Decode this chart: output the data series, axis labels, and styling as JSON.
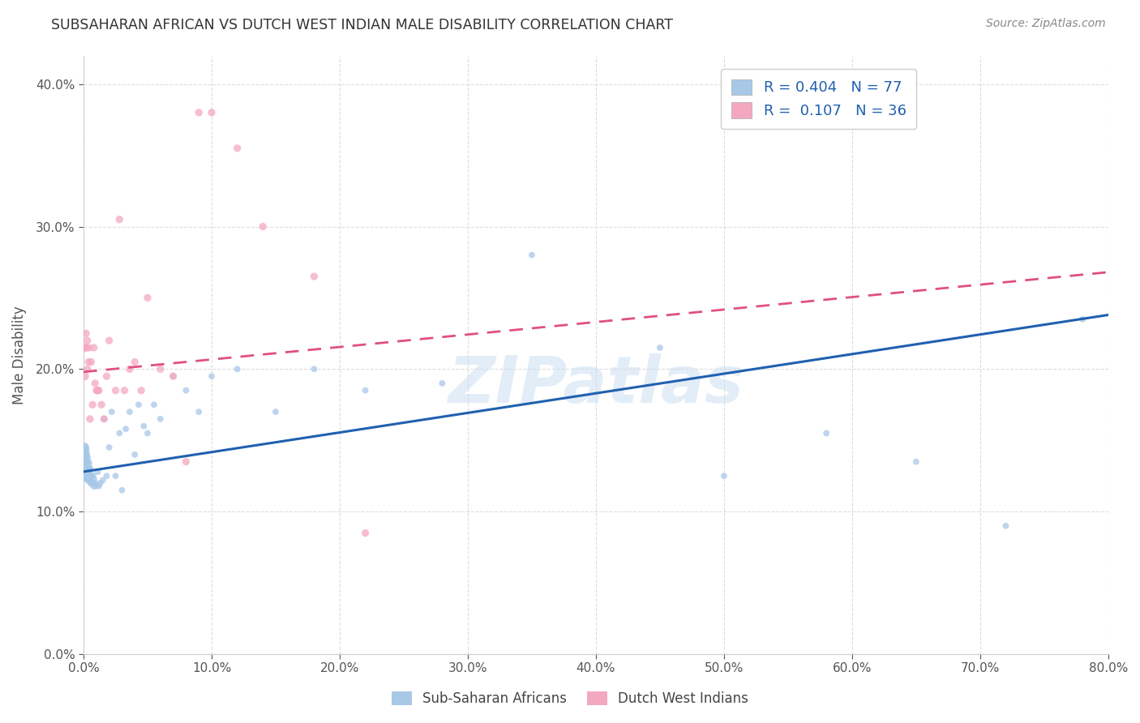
{
  "title": "SUBSAHARAN AFRICAN VS DUTCH WEST INDIAN MALE DISABILITY CORRELATION CHART",
  "source": "Source: ZipAtlas.com",
  "ylabel": "Male Disability",
  "legend_labels": [
    "Sub-Saharan Africans",
    "Dutch West Indians"
  ],
  "series1_label": "R = 0.404   N = 77",
  "series2_label": "R =  0.107   N = 36",
  "series1_color": "#a8c8e8",
  "series2_color": "#f4a8c0",
  "series1_line_color": "#2060b0",
  "series2_line_color": "#e05080",
  "series2_line_style": "--",
  "xmin": 0.0,
  "xmax": 0.8,
  "ymin": 0.0,
  "ymax": 0.42,
  "grid_color": "#dddddd",
  "watermark": "ZIPatlas",
  "background_color": "#ffffff",
  "s1_x": [
    0.0005,
    0.0005,
    0.0005,
    0.0005,
    0.0005,
    0.001,
    0.001,
    0.001,
    0.001,
    0.001,
    0.001,
    0.001,
    0.001,
    0.001,
    0.002,
    0.002,
    0.002,
    0.002,
    0.002,
    0.002,
    0.002,
    0.003,
    0.003,
    0.003,
    0.003,
    0.003,
    0.003,
    0.004,
    0.004,
    0.004,
    0.004,
    0.005,
    0.005,
    0.005,
    0.006,
    0.006,
    0.007,
    0.007,
    0.008,
    0.008,
    0.009,
    0.01,
    0.011,
    0.012,
    0.013,
    0.015,
    0.016,
    0.018,
    0.02,
    0.022,
    0.025,
    0.028,
    0.03,
    0.033,
    0.036,
    0.04,
    0.043,
    0.047,
    0.05,
    0.055,
    0.06,
    0.07,
    0.08,
    0.09,
    0.1,
    0.12,
    0.15,
    0.18,
    0.22,
    0.28,
    0.35,
    0.45,
    0.5,
    0.58,
    0.65,
    0.72,
    0.78
  ],
  "s1_y": [
    0.135,
    0.14,
    0.145,
    0.138,
    0.142,
    0.125,
    0.128,
    0.13,
    0.132,
    0.135,
    0.138,
    0.14,
    0.142,
    0.145,
    0.125,
    0.128,
    0.13,
    0.133,
    0.136,
    0.14,
    0.143,
    0.123,
    0.126,
    0.128,
    0.131,
    0.135,
    0.138,
    0.122,
    0.126,
    0.13,
    0.134,
    0.122,
    0.126,
    0.13,
    0.12,
    0.125,
    0.12,
    0.125,
    0.118,
    0.123,
    0.12,
    0.118,
    0.128,
    0.118,
    0.12,
    0.122,
    0.165,
    0.125,
    0.145,
    0.17,
    0.125,
    0.155,
    0.115,
    0.158,
    0.17,
    0.14,
    0.175,
    0.16,
    0.155,
    0.175,
    0.165,
    0.195,
    0.185,
    0.17,
    0.195,
    0.2,
    0.17,
    0.2,
    0.185,
    0.19,
    0.28,
    0.215,
    0.125,
    0.155,
    0.135,
    0.09,
    0.235
  ],
  "s1_sizes": [
    120,
    100,
    80,
    60,
    50,
    80,
    70,
    60,
    55,
    50,
    48,
    46,
    44,
    42,
    55,
    52,
    48,
    46,
    44,
    42,
    40,
    52,
    48,
    46,
    44,
    42,
    40,
    48,
    46,
    44,
    42,
    46,
    44,
    42,
    44,
    42,
    42,
    40,
    40,
    38,
    38,
    36,
    36,
    34,
    34,
    32,
    32,
    32,
    32,
    32,
    32,
    32,
    32,
    32,
    32,
    32,
    32,
    32,
    32,
    32,
    32,
    32,
    32,
    32,
    32,
    32,
    32,
    32,
    32,
    32,
    32,
    32,
    32,
    32,
    32,
    32,
    32
  ],
  "s2_x": [
    0.001,
    0.001,
    0.002,
    0.002,
    0.003,
    0.003,
    0.004,
    0.004,
    0.005,
    0.006,
    0.007,
    0.008,
    0.009,
    0.01,
    0.011,
    0.012,
    0.014,
    0.016,
    0.018,
    0.02,
    0.025,
    0.028,
    0.032,
    0.036,
    0.04,
    0.045,
    0.05,
    0.06,
    0.07,
    0.08,
    0.09,
    0.1,
    0.12,
    0.14,
    0.18,
    0.22
  ],
  "s2_y": [
    0.195,
    0.215,
    0.215,
    0.225,
    0.22,
    0.2,
    0.205,
    0.215,
    0.165,
    0.205,
    0.175,
    0.215,
    0.19,
    0.185,
    0.185,
    0.185,
    0.175,
    0.165,
    0.195,
    0.22,
    0.185,
    0.305,
    0.185,
    0.2,
    0.205,
    0.185,
    0.25,
    0.2,
    0.195,
    0.135,
    0.38,
    0.38,
    0.355,
    0.3,
    0.265,
    0.085
  ],
  "s2_sizes": [
    55,
    55,
    45,
    45,
    45,
    45,
    45,
    45,
    45,
    45,
    45,
    45,
    45,
    45,
    45,
    45,
    45,
    45,
    45,
    45,
    45,
    45,
    45,
    45,
    45,
    45,
    45,
    45,
    45,
    45,
    45,
    45,
    45,
    45,
    45,
    45
  ],
  "s1_line_x0": 0.0,
  "s1_line_x1": 0.8,
  "s1_line_y0": 0.128,
  "s1_line_y1": 0.238,
  "s2_line_x0": 0.0,
  "s2_line_x1": 0.8,
  "s2_line_y0": 0.198,
  "s2_line_y1": 0.268
}
